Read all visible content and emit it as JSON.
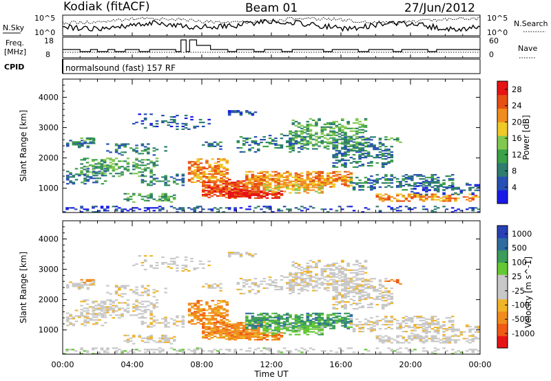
{
  "header": {
    "radar": "Kodiak (fitACF)",
    "beam": "Beam 01",
    "date": "27/Jun/2012"
  },
  "panels": {
    "nsky_label": "N.Sky",
    "nsearch_label": "N.Search",
    "noise_ticks": [
      "10^5",
      "10^0"
    ],
    "freq_label_line1": "Freq.",
    "freq_label_line2": "[MHz]",
    "freq_ticks": [
      "18",
      "8"
    ],
    "nave_label": "Nave",
    "nave_ticks": [
      "60",
      "0"
    ],
    "cpid_label": "CPID",
    "cpid_text": "normalsound (fast) 157 RF"
  },
  "colors": {
    "power_scale": [
      "#1a1ae6",
      "#2850b4",
      "#2e7d6e",
      "#3ca048",
      "#82c850",
      "#f0c828",
      "#f08c1e",
      "#e65014",
      "#e61414"
    ],
    "velocity_scale": [
      "#e61414",
      "#f05a14",
      "#f08c1e",
      "#f0b428",
      "#c8c8c8",
      "#c8c8c8",
      "#64c832",
      "#3c9c5a",
      "#2e6ca0",
      "#2840b4"
    ]
  },
  "chart_data": [
    {
      "type": "heatmap",
      "name": "power",
      "ylabel": "Slant Range [km]",
      "xlim": [
        "00:00",
        "24:00"
      ],
      "ylim": [
        200,
        4600
      ],
      "yticks": [
        "1000",
        "2000",
        "3000",
        "4000"
      ],
      "colorbar_label": "Power [dB]",
      "colorbar_ticks": [
        "4",
        "8",
        "12",
        "16",
        "20",
        "24",
        "28"
      ],
      "colorbar_range": [
        0,
        30
      ]
    },
    {
      "type": "heatmap",
      "name": "velocity",
      "ylabel": "Slant Range [km]",
      "xlabel": "Time UT",
      "xticks": [
        "00:00",
        "04:00",
        "08:00",
        "12:00",
        "16:00",
        "20:00",
        "00:00"
      ],
      "ylim": [
        200,
        4600
      ],
      "yticks": [
        "1000",
        "2000",
        "3000",
        "4000"
      ],
      "colorbar_label": "Velocity [m s^-1]",
      "colorbar_ticks": [
        "1000",
        "500",
        "100",
        "25",
        "-25",
        "-100",
        "-500",
        "-1000"
      ]
    }
  ]
}
